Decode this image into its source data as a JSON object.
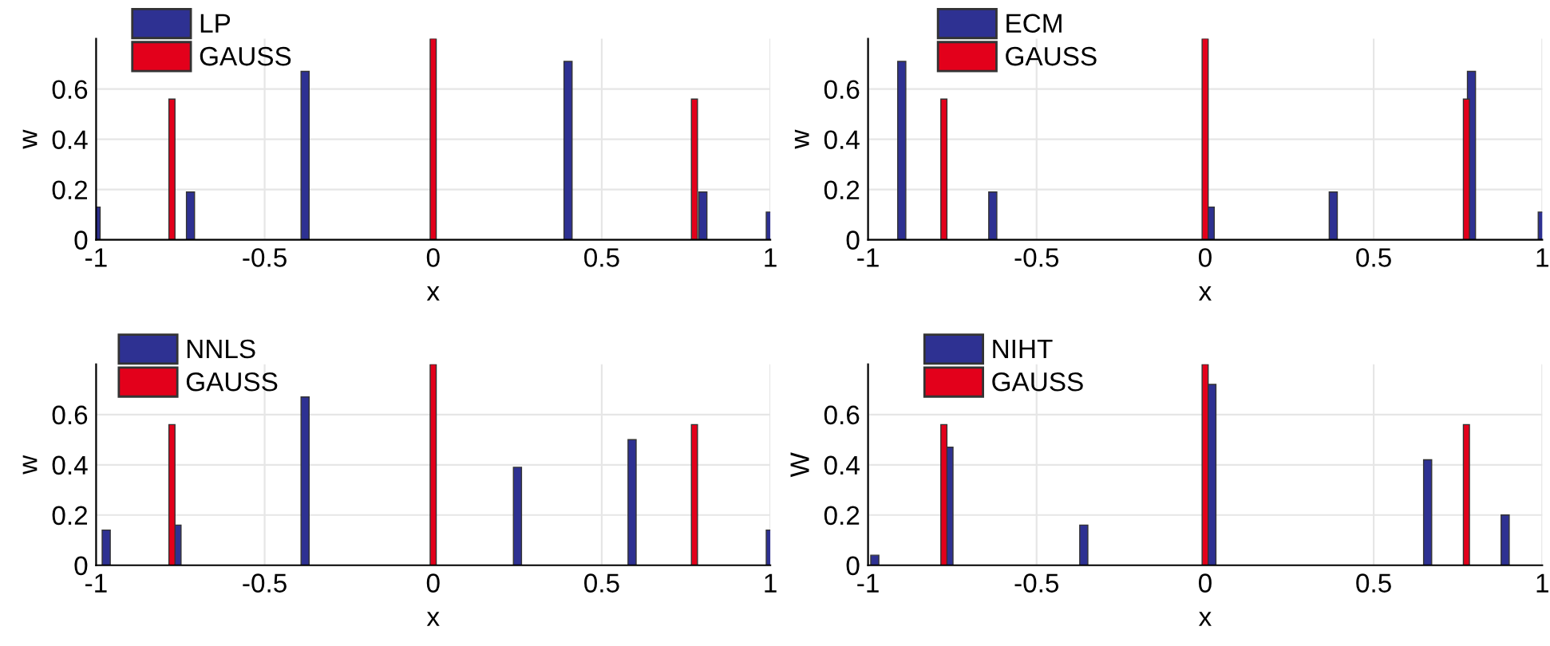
{
  "chart_data": [
    {
      "type": "bar",
      "xlabel": "x",
      "ylabel": "w",
      "xlim": [
        -1,
        1
      ],
      "ylim": [
        0,
        0.8
      ],
      "xticks": [
        -1,
        -0.5,
        0,
        0.5,
        1
      ],
      "yticks": [
        0,
        0.2,
        0.4,
        0.6
      ],
      "grid": true,
      "legend": "top left",
      "series": [
        {
          "name": "LP",
          "color": "#2e3192",
          "x": [
            -1,
            -0.72,
            -0.38,
            0.4,
            0.8,
            1
          ],
          "values": [
            0.13,
            0.19,
            0.67,
            0.71,
            0.19,
            0.11
          ]
        },
        {
          "name": "GAUSS",
          "color": "#e3001b",
          "x": [
            -0.775,
            0,
            0.775
          ],
          "values": [
            0.56,
            0.8,
            0.56
          ]
        }
      ]
    },
    {
      "type": "bar",
      "xlabel": "x",
      "ylabel": "w",
      "xlim": [
        -1,
        1
      ],
      "ylim": [
        0,
        0.8
      ],
      "xticks": [
        -1,
        -0.5,
        0,
        0.5,
        1
      ],
      "yticks": [
        0,
        0.2,
        0.4,
        0.6
      ],
      "grid": true,
      "legend": "top left",
      "series": [
        {
          "name": "ECM",
          "color": "#2e3192",
          "x": [
            -0.9,
            -0.63,
            0.015,
            0.38,
            0.79,
            1
          ],
          "values": [
            0.71,
            0.19,
            0.13,
            0.19,
            0.67,
            0.11
          ]
        },
        {
          "name": "GAUSS",
          "color": "#e3001b",
          "x": [
            -0.775,
            0,
            0.775
          ],
          "values": [
            0.56,
            0.8,
            0.56
          ]
        }
      ]
    },
    {
      "type": "bar",
      "xlabel": "x",
      "ylabel": "w",
      "xlim": [
        -1,
        1
      ],
      "ylim": [
        0,
        0.8
      ],
      "xticks": [
        -1,
        -0.5,
        0,
        0.5,
        1
      ],
      "yticks": [
        0,
        0.2,
        0.4,
        0.6
      ],
      "grid": true,
      "legend": "top left",
      "series": [
        {
          "name": "NNLS",
          "color": "#2e3192",
          "x": [
            -0.97,
            -0.76,
            -0.38,
            0.25,
            0.59,
            1
          ],
          "values": [
            0.14,
            0.16,
            0.67,
            0.39,
            0.5,
            0.14
          ]
        },
        {
          "name": "GAUSS",
          "color": "#e3001b",
          "x": [
            -0.775,
            0,
            0.775
          ],
          "values": [
            0.56,
            0.8,
            0.56
          ]
        }
      ]
    },
    {
      "type": "bar",
      "xlabel": "x",
      "ylabel": "W",
      "xlim": [
        -1,
        1
      ],
      "ylim": [
        0,
        0.8
      ],
      "xticks": [
        -1,
        -0.5,
        0,
        0.5,
        1
      ],
      "yticks": [
        0,
        0.2,
        0.4,
        0.6
      ],
      "grid": true,
      "legend": "top left",
      "series": [
        {
          "name": "NIHT",
          "color": "#2e3192",
          "x": [
            -0.98,
            -0.76,
            -0.36,
            0.02,
            0.66,
            0.89
          ],
          "values": [
            0.04,
            0.47,
            0.16,
            0.72,
            0.42,
            0.2
          ]
        },
        {
          "name": "GAUSS",
          "color": "#e3001b",
          "x": [
            -0.775,
            0,
            0.775
          ],
          "values": [
            0.56,
            0.8,
            0.56
          ]
        }
      ]
    }
  ]
}
